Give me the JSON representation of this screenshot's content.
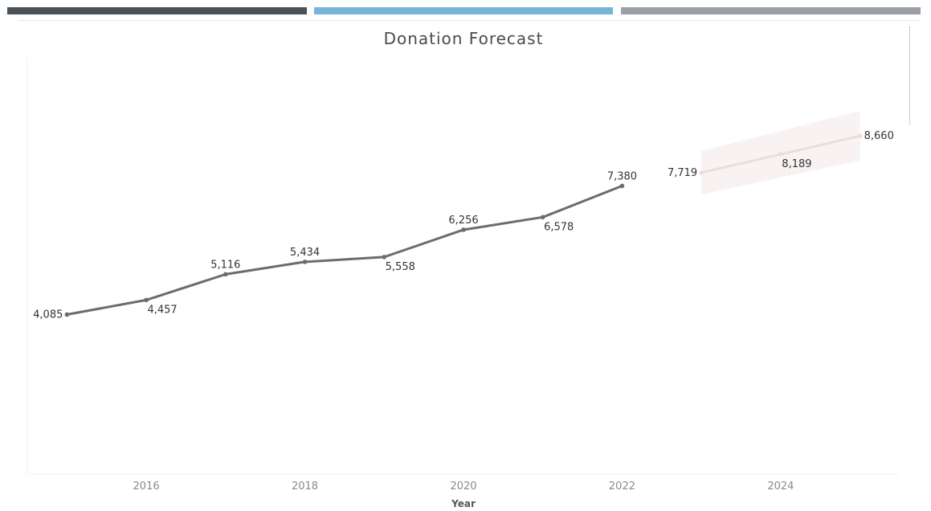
{
  "header": {
    "bar_colors": [
      "#4a5258",
      "#78b4d8",
      "#9aa0a6"
    ]
  },
  "chart_data": {
    "type": "line",
    "title": "Donation Forecast",
    "xlabel": "Year",
    "ylabel": "",
    "x_ticks": [
      2016,
      2018,
      2020,
      2022,
      2024
    ],
    "xlim": [
      2014.5,
      2025.5
    ],
    "ylim": [
      0,
      10700
    ],
    "grid": false,
    "series": [
      {
        "values": [
          {
            "x": 2015,
            "y": 4085
          },
          {
            "x": 2016,
            "y": 4457
          },
          {
            "x": 2017,
            "y": 5116
          },
          {
            "x": 2018,
            "y": 5434
          },
          {
            "x": 2019,
            "y": 5558
          },
          {
            "x": 2020,
            "y": 6256
          },
          {
            "x": 2021,
            "y": 6578
          },
          {
            "x": 2022,
            "y": 7380
          }
        ],
        "color": "#6e6b6b"
      },
      {
        "values": [
          {
            "x": 2023,
            "y": 7719
          },
          {
            "x": 2024,
            "y": 8189
          },
          {
            "x": 2025,
            "y": 8660
          }
        ],
        "color": "#ecdcdc",
        "band": [
          {
            "x": 2023,
            "low": 7160,
            "high": 8280
          },
          {
            "x": 2025,
            "low": 8030,
            "high": 9300
          }
        ],
        "band_color": "#f9f2f2"
      }
    ],
    "data_labels": [
      {
        "x": 2015,
        "text": "4,085",
        "side": "left"
      },
      {
        "x": 2016,
        "text": "4,457",
        "side": "below"
      },
      {
        "x": 2017,
        "text": "5,116",
        "side": "above"
      },
      {
        "x": 2018,
        "text": "5,434",
        "side": "above"
      },
      {
        "x": 2019,
        "text": "5,558",
        "side": "below"
      },
      {
        "x": 2020,
        "text": "6,256",
        "side": "above"
      },
      {
        "x": 2021,
        "text": "6,578",
        "side": "below"
      },
      {
        "x": 2022,
        "text": "7,380",
        "side": "above"
      },
      {
        "x": 2023,
        "text": "7,719",
        "side": "left"
      },
      {
        "x": 2024,
        "text": "8,189",
        "side": "below"
      },
      {
        "x": 2025,
        "text": "8,660",
        "side": "right"
      }
    ]
  }
}
